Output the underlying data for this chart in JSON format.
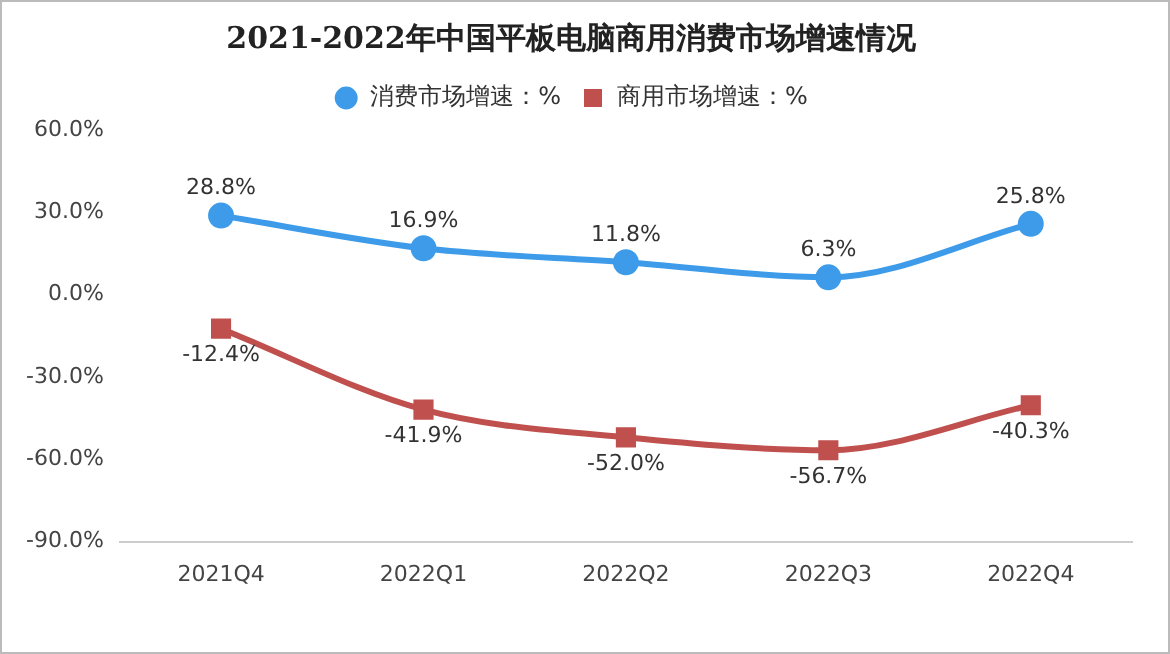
{
  "chart_data": {
    "type": "line",
    "title": "2021-2022年中国平板电脑商用消费市场增速情况",
    "categories": [
      "2021Q4",
      "2022Q1",
      "2022Q2",
      "2022Q3",
      "2022Q4"
    ],
    "series": [
      {
        "name": "消费市场增速：%",
        "color": "#3d9be9",
        "marker": "circle",
        "values": [
          28.8,
          16.9,
          11.8,
          6.3,
          25.8
        ],
        "value_labels": [
          "28.8%",
          "16.9%",
          "11.8%",
          "6.3%",
          "25.8%"
        ]
      },
      {
        "name": "商用市场增速：%",
        "color": "#c0504d",
        "marker": "square",
        "values": [
          -12.4,
          -41.9,
          -52.0,
          -56.7,
          -40.3
        ],
        "value_labels": [
          "-12.4%",
          "-41.9%",
          "-52.0%",
          "-56.7%",
          "-40.3%"
        ]
      }
    ],
    "ylim": [
      -90,
      60
    ],
    "yticks": [
      {
        "value": 60,
        "label": "60.0%"
      },
      {
        "value": 30,
        "label": "30.0%"
      },
      {
        "value": 0,
        "label": "0.0%"
      },
      {
        "value": -30,
        "label": "-30.0%"
      },
      {
        "value": -60,
        "label": "-60.0%"
      },
      {
        "value": -90,
        "label": "-90.0%"
      }
    ],
    "grid": false,
    "legend": "top",
    "line_style": "solid"
  }
}
